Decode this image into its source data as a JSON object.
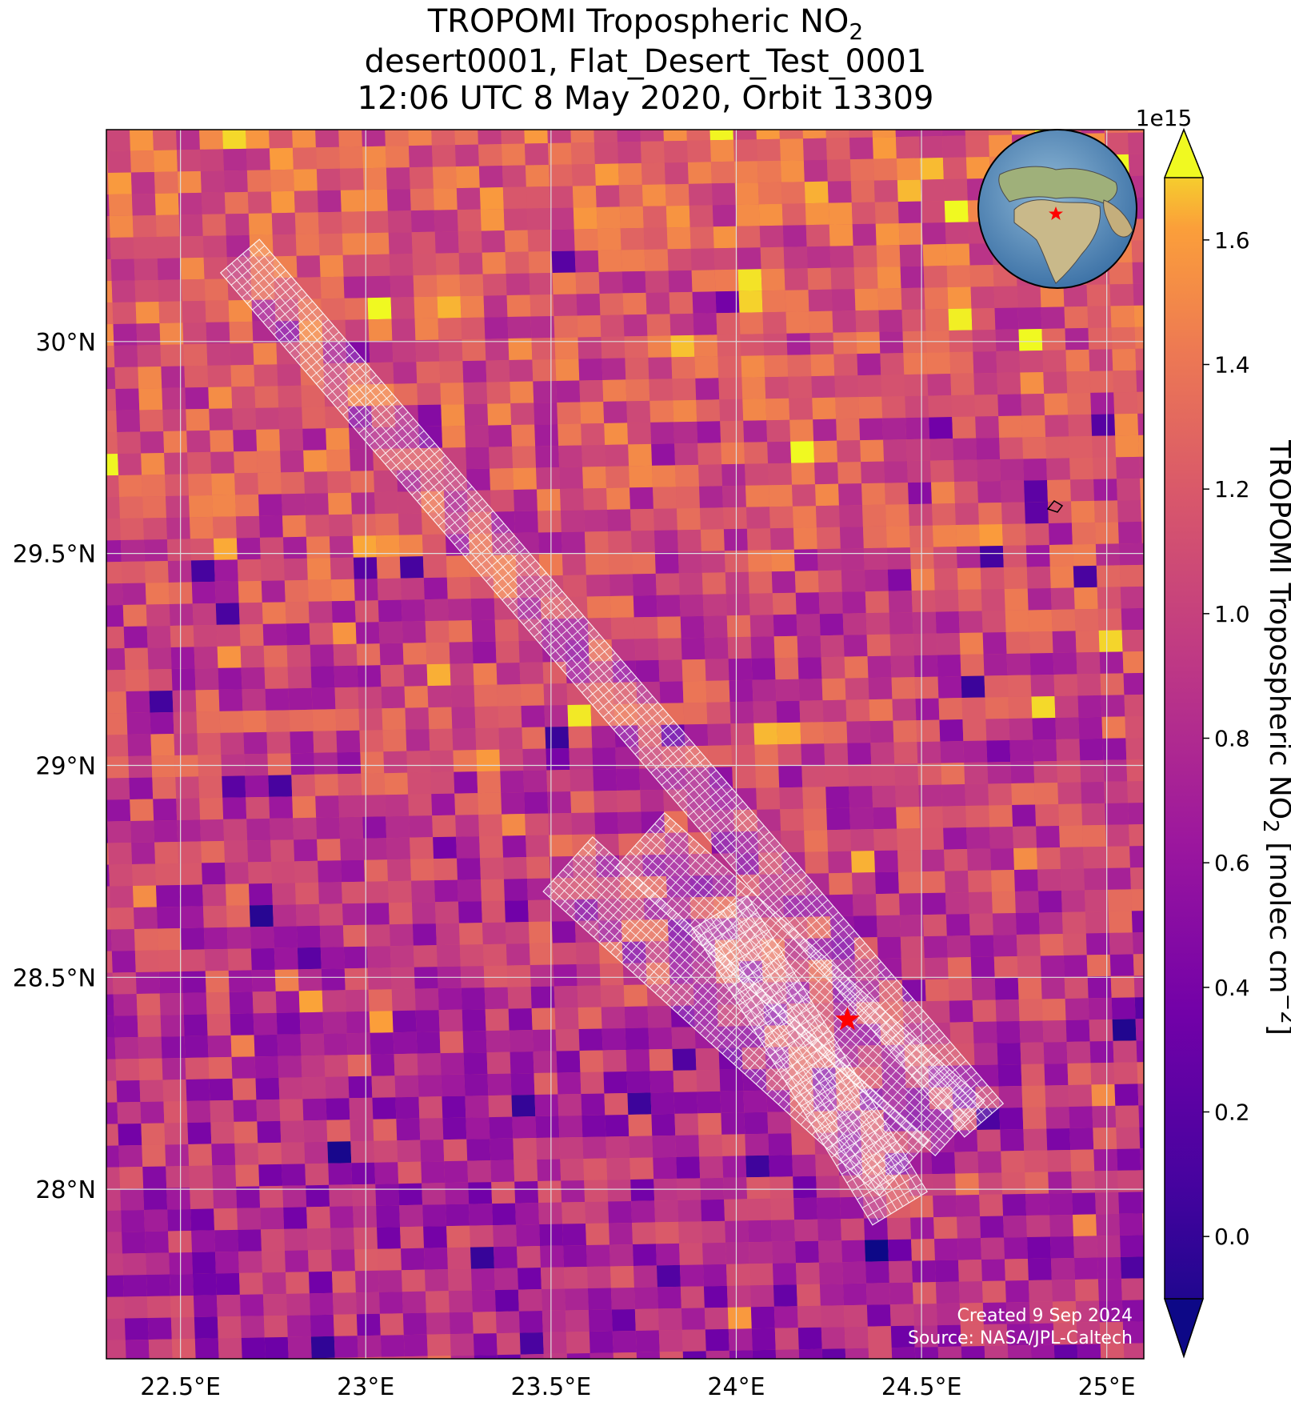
{
  "title": {
    "line1_main": "TROPOMI Tropospheric NO",
    "line1_sub": "2",
    "line2": "desert0001, Flat_Desert_Test_0001",
    "line3": "12:06 UTC 8 May 2020, Orbit 13309"
  },
  "map": {
    "lon_range": [
      22.3,
      25.1
    ],
    "lat_range": [
      27.6,
      30.5
    ],
    "lon_ticks": [
      {
        "value": 22.5,
        "label": "22.5°E"
      },
      {
        "value": 23.0,
        "label": "23°E"
      },
      {
        "value": 23.5,
        "label": "23.5°E"
      },
      {
        "value": 24.0,
        "label": "24°E"
      },
      {
        "value": 24.5,
        "label": "24.5°E"
      },
      {
        "value": 25.0,
        "label": "25°E"
      }
    ],
    "lat_ticks": [
      {
        "value": 30.0,
        "label": "30°N"
      },
      {
        "value": 29.5,
        "label": "29.5°N"
      },
      {
        "value": 29.0,
        "label": "29°N"
      },
      {
        "value": 28.5,
        "label": "28.5°N"
      },
      {
        "value": 28.0,
        "label": "28°N"
      }
    ],
    "site_marker": {
      "lon": 24.3,
      "lat": 28.4,
      "color": "#ff0000"
    },
    "grid": true,
    "colormap": "plasma"
  },
  "colorbar": {
    "multiplier": "1e15",
    "range": [
      -0.1,
      1.7
    ],
    "ticks": [
      {
        "value": 0.0,
        "label": "0.0"
      },
      {
        "value": 0.2,
        "label": "0.2"
      },
      {
        "value": 0.4,
        "label": "0.4"
      },
      {
        "value": 0.6,
        "label": "0.6"
      },
      {
        "value": 0.8,
        "label": "0.8"
      },
      {
        "value": 1.0,
        "label": "1.0"
      },
      {
        "value": 1.2,
        "label": "1.2"
      },
      {
        "value": 1.4,
        "label": "1.4"
      },
      {
        "value": 1.6,
        "label": "1.6"
      }
    ],
    "label_main": "TROPOMI Tropospheric NO",
    "label_sub": "2",
    "label_units": " [molec cm",
    "label_sup": "−2",
    "label_close": "]"
  },
  "credits": {
    "line1": "Created 9 Sep 2024",
    "line2": "Source: NASA/JPL-Caltech"
  }
}
